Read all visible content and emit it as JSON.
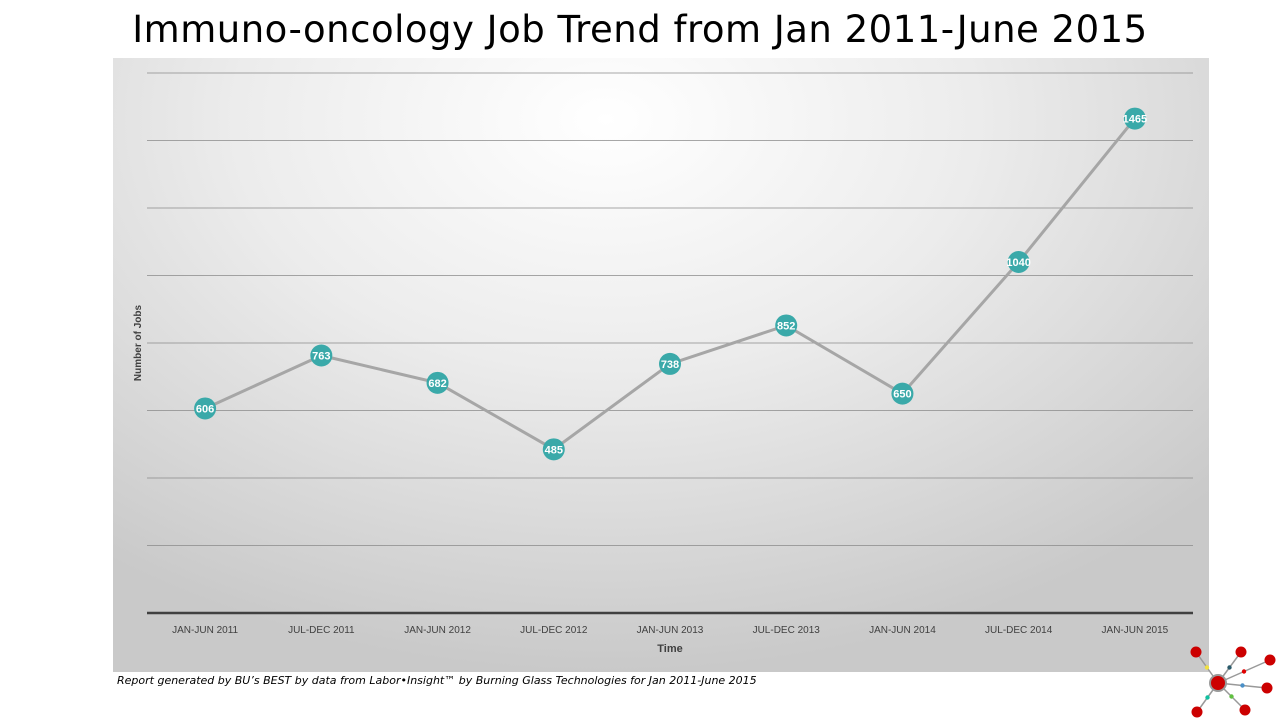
{
  "chart_data": {
    "type": "line",
    "title": "Immuno-oncology Job Trend from Jan 2011-June 2015",
    "xlabel": "Time",
    "ylabel": "Number of Jobs",
    "categories": [
      "JAN-JUN 2011",
      "JUL-DEC 2011",
      "JAN-JUN 2012",
      "JUL-DEC 2012",
      "JAN-JUN 2013",
      "JUL-DEC 2013",
      "JAN-JUN 2014",
      "JUL-DEC 2014",
      "JAN-JUN 2015"
    ],
    "values": [
      606,
      763,
      682,
      485,
      738,
      852,
      650,
      1040,
      1465
    ],
    "ylim": [
      0,
      1600
    ],
    "ygrid_step": 200,
    "grid": true,
    "y_tick_labels_shown": false,
    "colors": {
      "line": "#a6a6a6",
      "marker": "#3aa9a9",
      "label": "#ffffff"
    }
  },
  "footer": "Report generated by BU’s BEST by data from Labor•Insight™ by Burning Glass Technologies for Jan 2011-June 2015",
  "logo": {
    "icon": "network-nodes-logo",
    "node_color": "#cc0000"
  }
}
